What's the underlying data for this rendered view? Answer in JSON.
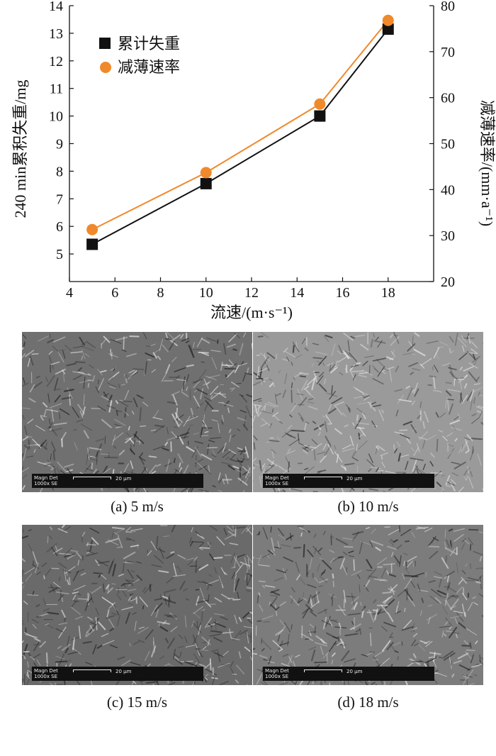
{
  "chart_data": {
    "type": "line",
    "x": [
      5,
      10,
      15,
      18
    ],
    "xlabel": "流速/(m·s⁻¹)",
    "xlim": [
      4,
      20
    ],
    "xticks": [
      4,
      6,
      8,
      10,
      12,
      14,
      16,
      18
    ],
    "ylabel_left": "240 min累积失重/mg",
    "ylim_left": [
      4,
      14
    ],
    "yticks_left": [
      5,
      6,
      7,
      8,
      9,
      10,
      11,
      12,
      13,
      14
    ],
    "ylabel_right": "减薄速率/(mm·a⁻¹)",
    "ylim_right": [
      20,
      80
    ],
    "yticks_right": [
      20,
      30,
      40,
      50,
      60,
      70,
      80
    ],
    "series": [
      {
        "name": "累计失重",
        "axis": "left",
        "marker": "square",
        "color": "#111111",
        "values": [
          5.35,
          7.55,
          10.0,
          13.15
        ]
      },
      {
        "name": "减薄速率",
        "axis": "right",
        "marker": "circle",
        "color": "#f0892b",
        "values": [
          31.3,
          43.7,
          58.6,
          76.8
        ]
      }
    ],
    "legend": "top-left",
    "grid": false
  },
  "micrographs": [
    {
      "caption": "(a) 5 m/s",
      "magn_label": "Magn  Det",
      "magn_value": "1000x  SE",
      "scale_label": "20 μm",
      "tone": "#707070"
    },
    {
      "caption": "(b) 10 m/s",
      "magn_label": "Magn  Det",
      "magn_value": "1000x  SE",
      "scale_label": "20 μm",
      "tone": "#9a9a9a"
    },
    {
      "caption": "(c) 15 m/s",
      "magn_label": "Magn  Det",
      "magn_value": "1000x  SE",
      "scale_label": "20 μm",
      "tone": "#6a6a6a"
    },
    {
      "caption": "(d) 18 m/s",
      "magn_label": "Magn  Det",
      "magn_value": "1000x  SE",
      "scale_label": "20 μm",
      "tone": "#7c7c7c"
    }
  ]
}
